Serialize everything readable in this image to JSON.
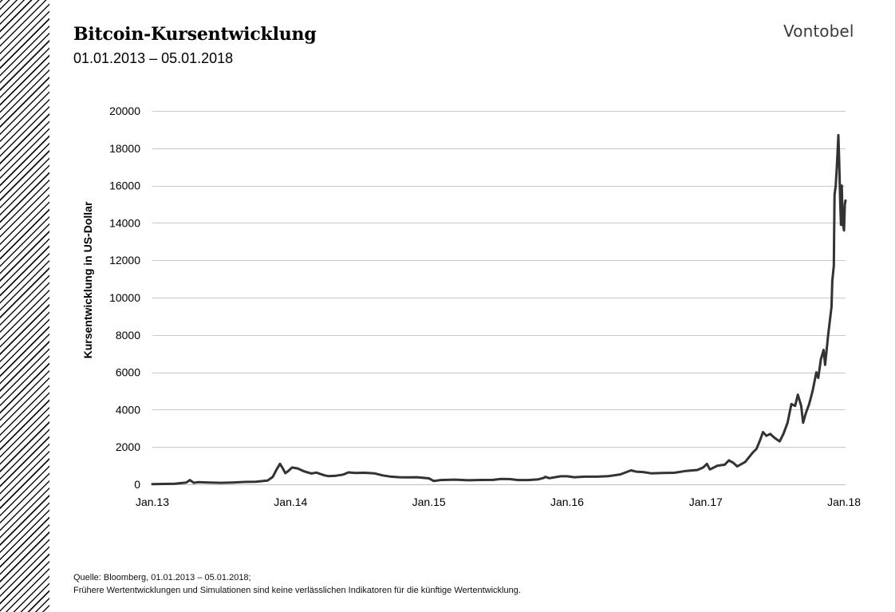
{
  "header": {
    "title": "Bitcoin-Kursentwicklung",
    "subtitle": "01.01.2013 – 05.01.2018",
    "logo": "Vontobel"
  },
  "footer": {
    "source": "Quelle: Bloomberg,  01.01.2013 – 05.01.2018;",
    "disclaimer": "Frühere Wertentwicklungen und Simulationen sind keine verlässlichen Indikatoren für die künftige Wertentwicklung."
  },
  "chart_data": {
    "type": "line",
    "title": "",
    "xlabel": "",
    "ylabel": "Kursentwicklung in US-Dollar",
    "ylim": [
      0,
      20000
    ],
    "yticks": [
      0,
      2000,
      4000,
      6000,
      8000,
      10000,
      12000,
      14000,
      16000,
      18000,
      20000
    ],
    "xlim": [
      "2013-01-01",
      "2018-01-05"
    ],
    "xticks": [
      "Jan.13",
      "Jan.14",
      "Jan.15",
      "Jan.16",
      "Jan.17",
      "Jan.18"
    ],
    "grid": "horizontal",
    "line_color": "#333333",
    "series": [
      {
        "x": [
          "2013-01-01",
          "2013-02-01",
          "2013-03-01",
          "2013-04-01",
          "2013-04-10",
          "2013-04-20",
          "2013-05-01",
          "2013-06-01",
          "2013-07-01",
          "2013-08-01",
          "2013-09-01",
          "2013-10-01",
          "2013-11-01",
          "2013-11-15",
          "2013-11-25",
          "2013-12-04",
          "2013-12-10",
          "2013-12-18",
          "2013-12-25",
          "2014-01-05",
          "2014-01-20",
          "2014-02-05",
          "2014-02-25",
          "2014-03-10",
          "2014-04-01",
          "2014-04-11",
          "2014-05-01",
          "2014-05-20",
          "2014-06-03",
          "2014-06-20",
          "2014-07-15",
          "2014-08-10",
          "2014-09-01",
          "2014-09-20",
          "2014-10-15",
          "2014-11-10",
          "2014-12-01",
          "2015-01-01",
          "2015-01-14",
          "2015-02-01",
          "2015-03-10",
          "2015-04-15",
          "2015-05-20",
          "2015-06-20",
          "2015-07-10",
          "2015-08-01",
          "2015-08-25",
          "2015-09-20",
          "2015-10-15",
          "2015-11-01",
          "2015-11-04",
          "2015-11-15",
          "2015-12-15",
          "2016-01-01",
          "2016-01-20",
          "2016-02-15",
          "2016-03-20",
          "2016-04-20",
          "2016-05-20",
          "2016-06-10",
          "2016-06-18",
          "2016-07-01",
          "2016-07-20",
          "2016-08-10",
          "2016-09-10",
          "2016-10-10",
          "2016-11-10",
          "2016-12-10",
          "2016-12-25",
          "2017-01-04",
          "2017-01-12",
          "2017-02-01",
          "2017-02-20",
          "2017-03-03",
          "2017-03-15",
          "2017-03-25",
          "2017-04-15",
          "2017-05-05",
          "2017-05-15",
          "2017-05-25",
          "2017-06-01",
          "2017-06-10",
          "2017-06-20",
          "2017-07-01",
          "2017-07-15",
          "2017-07-25",
          "2017-08-05",
          "2017-08-15",
          "2017-08-25",
          "2017-09-01",
          "2017-09-10",
          "2017-09-15",
          "2017-09-22",
          "2017-10-01",
          "2017-10-10",
          "2017-10-20",
          "2017-10-25",
          "2017-11-01",
          "2017-11-08",
          "2017-11-12",
          "2017-11-20",
          "2017-11-26",
          "2017-11-29",
          "2017-12-01",
          "2017-12-05",
          "2017-12-07",
          "2017-12-10",
          "2017-12-13",
          "2017-12-17",
          "2017-12-19",
          "2017-12-22",
          "2017-12-24",
          "2017-12-26",
          "2017-12-28",
          "2017-12-30",
          "2018-01-01",
          "2018-01-03",
          "2018-01-05"
        ],
        "values": [
          13,
          20,
          34,
          100,
          230,
          80,
          115,
          100,
          80,
          100,
          130,
          140,
          200,
          400,
          800,
          1100,
          900,
          600,
          700,
          900,
          850,
          700,
          580,
          630,
          480,
          440,
          460,
          520,
          640,
          610,
          620,
          590,
          480,
          420,
          380,
          370,
          380,
          320,
          180,
          230,
          250,
          220,
          235,
          240,
          290,
          280,
          230,
          230,
          260,
          350,
          400,
          330,
          430,
          430,
          380,
          410,
          410,
          440,
          530,
          690,
          750,
          680,
          660,
          590,
          610,
          620,
          720,
          770,
          900,
          1100,
          800,
          1000,
          1050,
          1280,
          1150,
          960,
          1200,
          1700,
          1900,
          2400,
          2800,
          2600,
          2700,
          2500,
          2300,
          2700,
          3300,
          4300,
          4200,
          4800,
          4200,
          3300,
          3800,
          4300,
          5000,
          6000,
          5700,
          6700,
          7200,
          6400,
          8000,
          9000,
          9500,
          10900,
          11700,
          15500,
          16000,
          17000,
          18700,
          17500,
          15000,
          13900,
          16000,
          14300,
          13800,
          13600,
          15000,
          15200
        ]
      }
    ]
  }
}
